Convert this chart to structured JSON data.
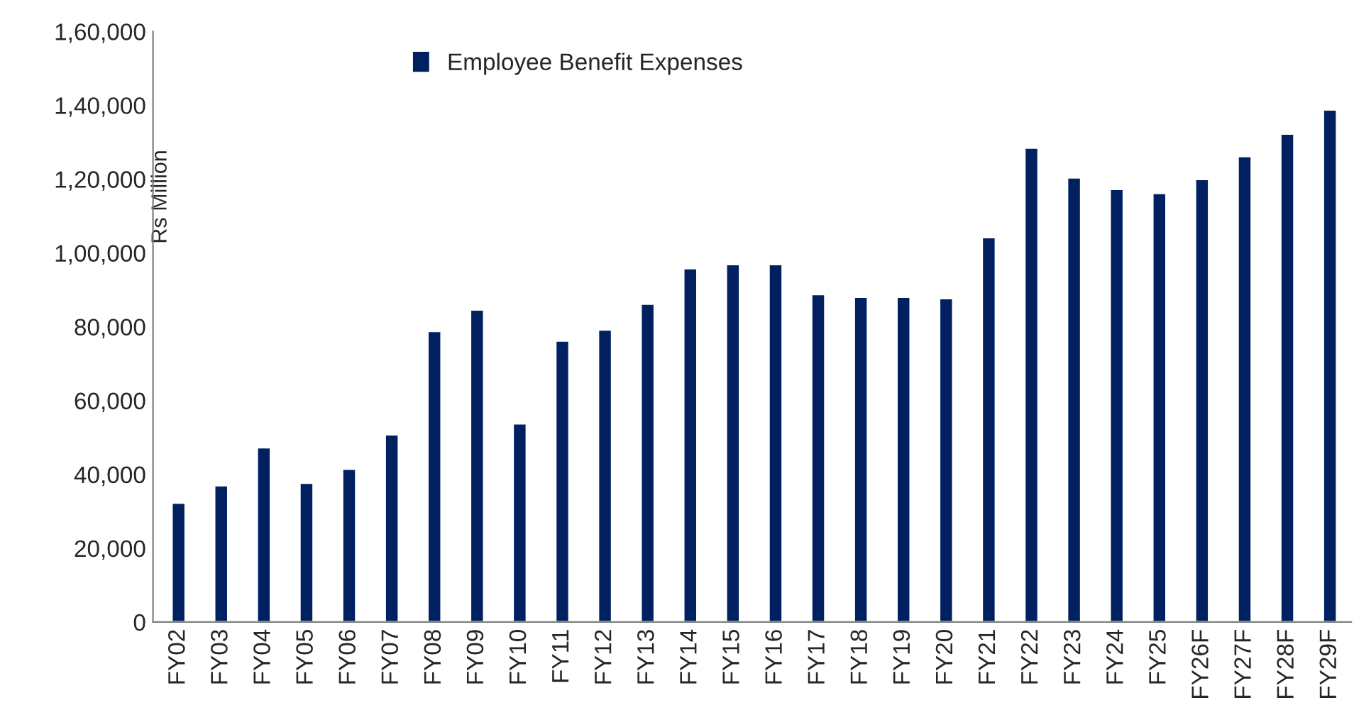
{
  "chart_data": {
    "type": "bar",
    "ylabel": "Rs Million",
    "categories": [
      "FY02",
      "FY03",
      "FY04",
      "FY05",
      "FY06",
      "FY07",
      "FY08",
      "FY09",
      "FY10",
      "FY11",
      "FY12",
      "FY13",
      "FY14",
      "FY15",
      "FY16",
      "FY17",
      "FY18",
      "FY19",
      "FY20",
      "FY21",
      "FY22",
      "FY23",
      "FY24",
      "FY25",
      "FY26F",
      "FY27F",
      "FY28F",
      "FY29F"
    ],
    "series": [
      {
        "name": "Employee Benefit Expenses",
        "color": "#002060",
        "values": [
          32300,
          37000,
          47300,
          37700,
          41500,
          50800,
          78800,
          84600,
          53800,
          76200,
          79200,
          86200,
          95800,
          96900,
          96900,
          88800,
          88100,
          88100,
          87700,
          104200,
          128500,
          120400,
          117300,
          116200,
          120000,
          126200,
          132300,
          138800
        ]
      }
    ],
    "ylim": [
      0,
      160000
    ],
    "yticks": [
      {
        "value": 0,
        "label": "0"
      },
      {
        "value": 20000,
        "label": "20,000"
      },
      {
        "value": 40000,
        "label": "40,000"
      },
      {
        "value": 60000,
        "label": "60,000"
      },
      {
        "value": 80000,
        "label": "80,000"
      },
      {
        "value": 100000,
        "label": "1,00,000"
      },
      {
        "value": 120000,
        "label": "1,20,000"
      },
      {
        "value": 140000,
        "label": "1,40,000"
      },
      {
        "value": 160000,
        "label": "1,60,000"
      }
    ],
    "grid": false,
    "legend": "top"
  }
}
